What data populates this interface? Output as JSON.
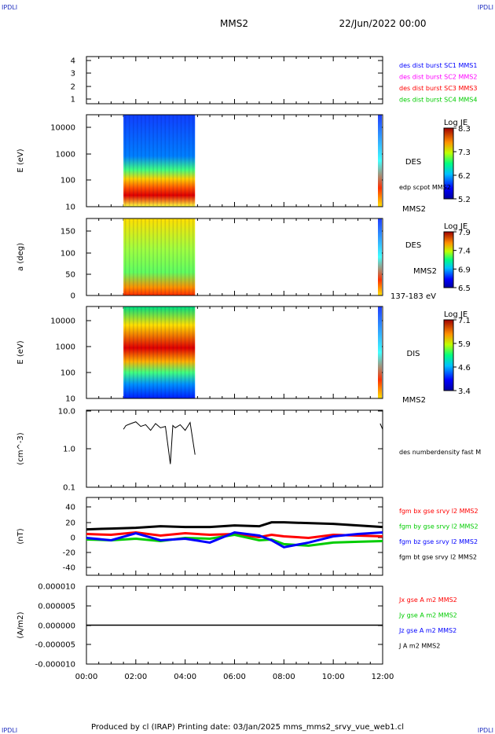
{
  "header": {
    "corner_left": "IPDLI",
    "corner_right": "IPDLI",
    "mission": "MMS2",
    "date": "22/Jun/2022 00:00"
  },
  "footer": {
    "text": "Produced by cl (IRAP)   Printing date: 03/Jan/2025   mms_mms2_srvy_vue_web1.cl",
    "corner_left": "IPDLI",
    "corner_right": "IPDLI"
  },
  "xaxis": {
    "ticks": [
      "00:00",
      "02:00",
      "04:00",
      "06:00",
      "08:00",
      "10:00",
      "12:00"
    ],
    "range_hours": [
      0,
      12
    ]
  },
  "chart_data": [
    {
      "type": "line",
      "id": "burst-availability",
      "ylim": [
        0.5,
        4.5
      ],
      "ytick_labels": [
        "4",
        "3",
        "2",
        "1"
      ],
      "legend": [
        {
          "label": "des dist burst SC1 MMS1",
          "color": "#0000ff"
        },
        {
          "label": "des dist burst SC2 MMS2",
          "color": "#ff00ff"
        },
        {
          "label": "des dist burst SC3 MMS3",
          "color": "#ff0000"
        },
        {
          "label": "des dist burst SC4 MMS4",
          "color": "#00cc00"
        }
      ],
      "series": []
    },
    {
      "type": "heatmap",
      "id": "des-energy-spectrogram",
      "ylabel": "E (eV)",
      "scale": "log",
      "ylim": [
        10,
        30000
      ],
      "ytick_labels": [
        "10000",
        "1000",
        "100",
        "10"
      ],
      "data_interval_hours": [
        1.5,
        4.4
      ],
      "colorbar": {
        "title": "Log JE",
        "ticks": [
          "8.3",
          "7.3",
          "6.2",
          "5.2"
        ],
        "min": 5.2,
        "max": 8.3
      },
      "side_labels": [
        "DES",
        "edp scpot MMS2",
        "MMS2"
      ]
    },
    {
      "type": "heatmap",
      "id": "des-pitch-angle",
      "ylabel": "a (deg)",
      "ylim": [
        0,
        180
      ],
      "ytick_labels": [
        "150",
        "100",
        "50",
        "0"
      ],
      "data_interval_hours": [
        1.5,
        4.4
      ],
      "colorbar": {
        "title": "Log JE",
        "ticks": [
          "7.9",
          "7.4",
          "6.9",
          "6.5"
        ],
        "min": 6.5,
        "max": 7.9
      },
      "side_labels": [
        "DES",
        "MMS2",
        "137-183 eV"
      ]
    },
    {
      "type": "heatmap",
      "id": "dis-energy-spectrogram",
      "ylabel": "E (eV)",
      "scale": "log",
      "ylim": [
        10,
        30000
      ],
      "ytick_labels": [
        "10000",
        "1000",
        "100",
        "10"
      ],
      "data_interval_hours": [
        1.5,
        4.4
      ],
      "colorbar": {
        "title": "Log JE",
        "ticks": [
          "7.1",
          "5.9",
          "4.6",
          "3.4"
        ],
        "min": 3.4,
        "max": 7.1
      },
      "side_labels": [
        "DIS",
        "MMS2"
      ]
    },
    {
      "type": "line",
      "id": "number-density",
      "ylabel": "(cm^-3)",
      "scale": "log",
      "ylim": [
        0.1,
        10
      ],
      "ytick_labels": [
        "10.0",
        "1.0",
        "0.1"
      ],
      "legend": [
        {
          "label": "des numberdensity fast M",
          "color": "#000000"
        }
      ],
      "series": [
        {
          "color": "#000000",
          "x": [
            1.5,
            1.6,
            1.8,
            2.0,
            2.2,
            2.4,
            2.6,
            2.8,
            3.0,
            3.2,
            3.4,
            3.5,
            3.6,
            3.8,
            4.0,
            4.2,
            4.4,
            11.9,
            12.0
          ],
          "y": [
            3.2,
            4.0,
            4.5,
            5.0,
            3.8,
            4.2,
            3.0,
            4.5,
            3.5,
            3.8,
            0.4,
            4.0,
            3.5,
            4.2,
            3.0,
            4.8,
            0.7,
            4.5,
            3.2
          ]
        }
      ]
    },
    {
      "type": "line",
      "id": "magnetic-field",
      "ylabel": "(nT)",
      "ylim": [
        -50,
        50
      ],
      "ytick_labels": [
        "40",
        "20",
        "0",
        "-20",
        "-40"
      ],
      "legend": [
        {
          "label": "fgm bx gse srvy l2 MMS2",
          "color": "#ff0000"
        },
        {
          "label": "fgm by gse srvy l2 MMS2",
          "color": "#00cc00"
        },
        {
          "label": "fgm bz gse srvy l2 MMS2",
          "color": "#0000ff"
        },
        {
          "label": "fgm bt gse srvy l2 MMS2",
          "color": "#000000"
        }
      ],
      "series": [
        {
          "name": "fgm bx gse srvy l2 MMS2",
          "color": "#ff0000",
          "x": [
            0,
            1,
            2,
            3,
            4,
            5,
            6,
            7,
            7.5,
            8,
            9,
            10,
            11,
            12
          ],
          "y": [
            3,
            2,
            5,
            1,
            4,
            2,
            3,
            -1,
            2,
            0,
            -2,
            2,
            1,
            0
          ]
        },
        {
          "name": "fgm by gse srvy l2 MMS2",
          "color": "#00cc00",
          "x": [
            0,
            1,
            2,
            3,
            4,
            5,
            6,
            7,
            7.5,
            8,
            9,
            10,
            11,
            12
          ],
          "y": [
            -4,
            -5,
            -3,
            -6,
            -2,
            -3,
            2,
            -5,
            -4,
            -10,
            -12,
            -8,
            -7,
            -6
          ]
        },
        {
          "name": "fgm bz gse srvy l2 MMS2",
          "color": "#0000ff",
          "x": [
            0,
            1,
            2,
            3,
            4,
            5,
            6,
            7,
            7.5,
            8,
            9,
            10,
            11,
            12
          ],
          "y": [
            -2,
            -5,
            4,
            -5,
            -3,
            -8,
            5,
            1,
            -5,
            -14,
            -8,
            0,
            3,
            5
          ]
        },
        {
          "name": "fgm bt gse srvy l2 MMS2",
          "color": "#000000",
          "x": [
            0,
            1,
            2,
            3,
            4,
            5,
            6,
            7,
            7.5,
            8,
            9,
            10,
            11,
            12
          ],
          "y": [
            9,
            10,
            11,
            13,
            12,
            12,
            14,
            13,
            18,
            18,
            17,
            16,
            14,
            12
          ]
        }
      ]
    },
    {
      "type": "line",
      "id": "current-density",
      "ylabel": "(A/m2)",
      "ylim": [
        -1e-05,
        1e-05
      ],
      "ytick_labels": [
        "0.000010",
        "0.000005",
        "0.000000",
        "-0.000005",
        "-0.000010"
      ],
      "legend": [
        {
          "label": "Jx gse A m2 MMS2",
          "color": "#ff0000"
        },
        {
          "label": "Jy gse A m2 MMS2",
          "color": "#00cc00"
        },
        {
          "label": "Jz gse A m2 MMS2",
          "color": "#0000ff"
        },
        {
          "label": "J A m2 MMS2",
          "color": "#000000"
        }
      ],
      "series": [
        {
          "name": "J A m2 MMS2",
          "color": "#000000",
          "x": [
            0,
            12
          ],
          "y": [
            0,
            0
          ]
        }
      ]
    }
  ]
}
